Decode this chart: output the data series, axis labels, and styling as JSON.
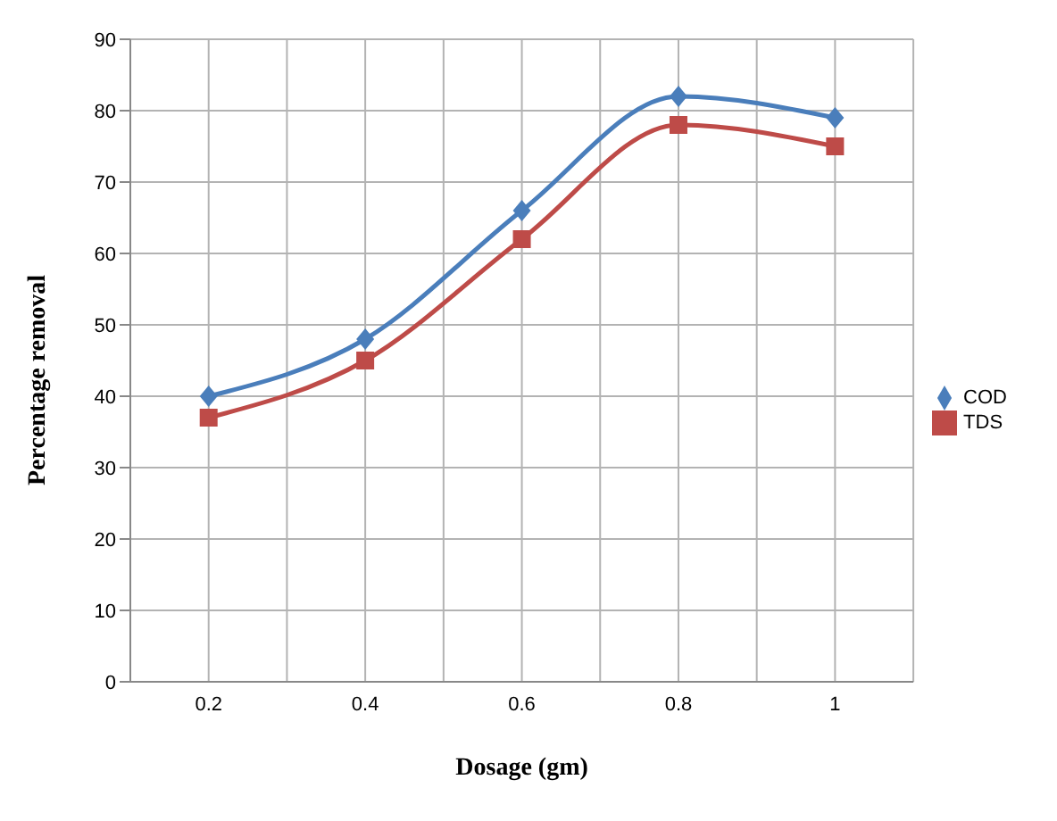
{
  "chart_data": {
    "type": "line",
    "xlabel": "Dosage (gm)",
    "ylabel": "Percentage removal",
    "x": [
      0.2,
      0.4,
      0.6,
      0.8,
      1
    ],
    "series": [
      {
        "name": "COD",
        "color": "#4a7ebb",
        "marker": "diamond",
        "values": [
          40,
          48,
          66,
          82,
          79
        ]
      },
      {
        "name": "TDS",
        "color": "#be4b48",
        "marker": "square",
        "values": [
          37,
          45,
          62,
          78,
          75
        ]
      }
    ],
    "xlim": [
      0.1,
      1.1
    ],
    "xticks": [
      {
        "value": 0.1,
        "label": null
      },
      0.2,
      {
        "value": 0.3,
        "label": null
      },
      0.4,
      {
        "value": 0.5,
        "label": null
      },
      0.6,
      {
        "value": 0.7,
        "label": null
      },
      0.8,
      {
        "value": 0.9,
        "label": null
      },
      1,
      {
        "value": 1.1,
        "label": null
      }
    ],
    "ylim": [
      0,
      90
    ],
    "yticks": [
      0,
      10,
      20,
      30,
      40,
      50,
      60,
      70,
      80,
      90
    ],
    "grid": true,
    "legend": "right"
  }
}
